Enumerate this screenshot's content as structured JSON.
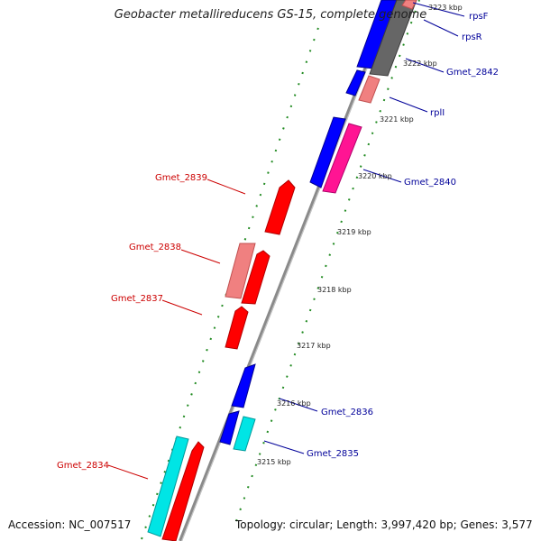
{
  "title": "Geobacter metallireducens GS-15, complete genome",
  "accession": "Accession: NC_007517",
  "topology": "Topology: circular; Length: 3,997,420 bp; Genes: 3,577",
  "colors": {
    "reverse_label": "#cc0000",
    "forward_label": "#000099",
    "backbone": "#888888",
    "ticks": "#228b22"
  },
  "ticks": [
    "3215 kbp",
    "3216 kbp",
    "3217 kbp",
    "3218 kbp",
    "3219 kbp",
    "3220 kbp",
    "3221 kbp",
    "3222 kbp",
    "3223 kbp"
  ],
  "labels": {
    "gmet_2839": "Gmet_2839",
    "gmet_2838": "Gmet_2838",
    "gmet_2837": "Gmet_2837",
    "gmet_2834": "Gmet_2834",
    "gmet_2840": "Gmet_2840",
    "gmet_2842": "Gmet_2842",
    "gmet_2836": "Gmet_2836",
    "gmet_2835": "Gmet_2835",
    "rpsF": "rpsF",
    "rpsR": "rpsR",
    "rplI": "rplI"
  }
}
